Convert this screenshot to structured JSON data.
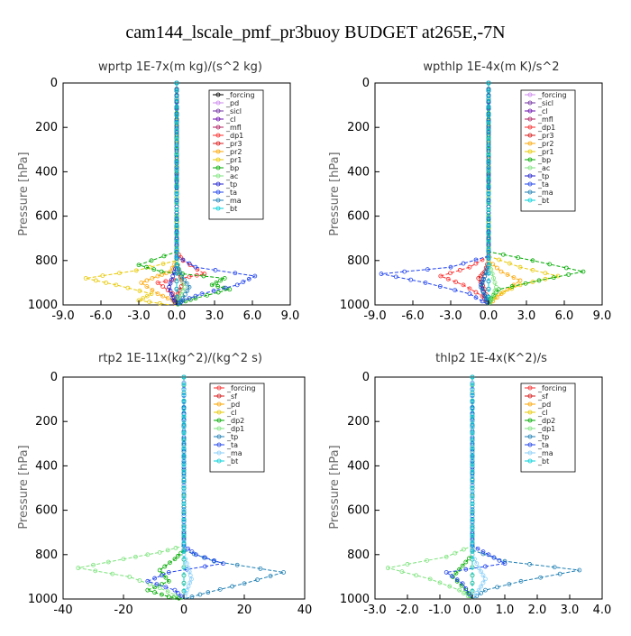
{
  "figure": {
    "title": "cam144_lscale_pmf_pr3buoy  BUDGET at265E,-7N"
  },
  "chart_data": [
    {
      "type": "line",
      "title": "wprtp   1E-7x(m kg)/(s^2 kg)",
      "ylabel": "Pressure [hPa]",
      "xlim": [
        -9,
        9
      ],
      "xticks": [
        -9,
        -6,
        -3,
        0,
        3,
        6,
        9
      ],
      "xtick_labels": [
        "-9.0",
        "-6.0",
        "-3.0",
        "0.0",
        "3.0",
        "6.0",
        "9.0"
      ],
      "ylim": [
        1000,
        0
      ],
      "yticks": [
        0,
        200,
        400,
        600,
        800,
        1000
      ],
      "ytick_labels": [
        "0",
        "200",
        "400",
        "600",
        "800",
        "1000"
      ],
      "legend_position": "top-right",
      "series": [
        {
          "name": "_forcing",
          "color": "#000000",
          "x": [
            0,
            0
          ],
          "y": [
            0,
            1000
          ]
        },
        {
          "name": "_pd",
          "color": "#cc88ee",
          "x": [
            0,
            0
          ],
          "y": [
            0,
            1000
          ]
        },
        {
          "name": "_sicl",
          "color": "#7030a0",
          "x": [
            0,
            0
          ],
          "y": [
            0,
            1000
          ]
        },
        {
          "name": "_cl",
          "color": "#6a0dad",
          "x": [
            0,
            0
          ],
          "y": [
            0,
            1000
          ]
        },
        {
          "name": "_mfl",
          "color": "#b02060",
          "x": [
            0,
            0
          ],
          "y": [
            0,
            1000
          ]
        },
        {
          "name": "_dp1",
          "color": "#ff2a2a",
          "x": [
            0,
            0,
            0.5,
            2.2,
            0.4,
            -1.5,
            -0.3,
            0
          ],
          "y": [
            0,
            760,
            800,
            860,
            880,
            900,
            950,
            1000
          ]
        },
        {
          "name": "_pr3",
          "color": "#d81818",
          "x": [
            0,
            0,
            0.2,
            0.5,
            0.1,
            0
          ],
          "y": [
            0,
            800,
            860,
            900,
            950,
            1000
          ]
        },
        {
          "name": "_pr2",
          "color": "#ffa500",
          "x": [
            0,
            0,
            -0.5,
            -1.5,
            -2.8,
            -1.5,
            -0.3,
            0
          ],
          "y": [
            0,
            800,
            850,
            870,
            900,
            950,
            980,
            1000
          ]
        },
        {
          "name": "_pr1",
          "color": "#e8c800",
          "x": [
            0,
            0,
            -3.2,
            -7.2,
            -4.8,
            -2.0,
            -3.0,
            -0.5
          ],
          "y": [
            0,
            800,
            845,
            880,
            910,
            950,
            980,
            1000
          ]
        },
        {
          "name": "_bp",
          "color": "#00aa00",
          "x": [
            0,
            0,
            -3.0,
            -1.2,
            3.8,
            2.8,
            4.2,
            1.5,
            0.3,
            0
          ],
          "y": [
            0,
            760,
            820,
            850,
            880,
            910,
            930,
            970,
            990,
            1000
          ]
        },
        {
          "name": "_ac",
          "color": "#7be37b",
          "x": [
            0,
            0,
            0.3,
            0.6,
            0.2,
            0
          ],
          "y": [
            0,
            800,
            860,
            920,
            970,
            1000
          ]
        },
        {
          "name": "_tp",
          "color": "#2222cc",
          "x": [
            0,
            0,
            -0.3,
            -0.6,
            -0.3,
            0
          ],
          "y": [
            0,
            820,
            870,
            920,
            970,
            1000
          ]
        },
        {
          "name": "_ta",
          "color": "#2244ee",
          "x": [
            0,
            0,
            1.5,
            6.2,
            4.8,
            2.0,
            0.5,
            0
          ],
          "y": [
            0,
            780,
            830,
            870,
            910,
            950,
            980,
            1000
          ]
        },
        {
          "name": "_ma",
          "color": "#1f7fb4",
          "x": [
            0,
            0,
            0.4,
            1.0,
            0.5,
            0
          ],
          "y": [
            0,
            820,
            870,
            920,
            970,
            1000
          ]
        },
        {
          "name": "_bt",
          "color": "#00d0d8",
          "x": [
            0,
            0
          ],
          "y": [
            0,
            1000
          ]
        }
      ]
    },
    {
      "type": "line",
      "title": "wpthlp   1E-4x(m K)/s^2",
      "ylabel": "Pressure [hPa]",
      "xlim": [
        -9,
        9
      ],
      "xticks": [
        -9,
        -6,
        -3,
        0,
        3,
        6,
        9
      ],
      "xtick_labels": [
        "-9.0",
        "-6.0",
        "-3.0",
        "0.0",
        "3.0",
        "6.0",
        "9.0"
      ],
      "ylim": [
        1000,
        0
      ],
      "yticks": [
        0,
        200,
        400,
        600,
        800,
        1000
      ],
      "ytick_labels": [
        "0",
        "200",
        "400",
        "600",
        "800",
        "1000"
      ],
      "legend_position": "top-right",
      "series": [
        {
          "name": "_forcing",
          "color": "#cc88ee",
          "x": [
            0,
            0
          ],
          "y": [
            0,
            1000
          ]
        },
        {
          "name": "_sicl",
          "color": "#7030a0",
          "x": [
            0,
            0
          ],
          "y": [
            0,
            1000
          ]
        },
        {
          "name": "_cl",
          "color": "#6a0dad",
          "x": [
            0,
            0
          ],
          "y": [
            0,
            1000
          ]
        },
        {
          "name": "_mfl",
          "color": "#b02060",
          "x": [
            0,
            0
          ],
          "y": [
            0,
            1000
          ]
        },
        {
          "name": "_dp1",
          "color": "#ff2a2a",
          "x": [
            0,
            0,
            -1.5,
            -3.8,
            -2.0,
            -0.5,
            0
          ],
          "y": [
            0,
            780,
            830,
            870,
            910,
            960,
            1000
          ]
        },
        {
          "name": "_pr3",
          "color": "#d81818",
          "x": [
            0,
            0,
            -0.3,
            -0.8,
            -0.3,
            0
          ],
          "y": [
            0,
            800,
            850,
            880,
            930,
            1000
          ]
        },
        {
          "name": "_pr2",
          "color": "#ffa500",
          "x": [
            0,
            0,
            1.0,
            2.5,
            1.0,
            0
          ],
          "y": [
            0,
            800,
            850,
            890,
            950,
            1000
          ]
        },
        {
          "name": "_pr1",
          "color": "#e8c800",
          "x": [
            0,
            0,
            2.5,
            5.5,
            2.5,
            0.5,
            0
          ],
          "y": [
            0,
            780,
            830,
            870,
            910,
            960,
            1000
          ]
        },
        {
          "name": "_bp",
          "color": "#00aa00",
          "x": [
            0,
            0,
            3.5,
            7.5,
            4.0,
            0.8,
            0.2,
            0
          ],
          "y": [
            0,
            760,
            800,
            850,
            890,
            930,
            970,
            1000
          ]
        },
        {
          "name": "_ac",
          "color": "#7be37b",
          "x": [
            0,
            0,
            0.3,
            0.6,
            0.3,
            0
          ],
          "y": [
            0,
            800,
            860,
            920,
            970,
            1000
          ]
        },
        {
          "name": "_tp",
          "color": "#2222cc",
          "x": [
            0,
            0,
            -0.3,
            -0.6,
            -0.3,
            0
          ],
          "y": [
            0,
            820,
            870,
            910,
            960,
            1000
          ]
        },
        {
          "name": "_ta",
          "color": "#2244ee",
          "x": [
            0,
            0,
            -3.0,
            -8.5,
            -5.0,
            -1.5,
            0
          ],
          "y": [
            0,
            780,
            830,
            860,
            900,
            950,
            1000
          ]
        },
        {
          "name": "_ma",
          "color": "#1f7fb4",
          "x": [
            0,
            0,
            -0.3,
            -0.6,
            -0.2,
            0
          ],
          "y": [
            0,
            820,
            870,
            920,
            970,
            1000
          ]
        },
        {
          "name": "_bt",
          "color": "#00d0d8",
          "x": [
            0,
            0
          ],
          "y": [
            0,
            1000
          ]
        }
      ]
    },
    {
      "type": "line",
      "title": "rtp2   1E-11x(kg^2)/(kg^2 s)",
      "ylabel": "Pressure [hPa]",
      "xlim": [
        -40,
        40
      ],
      "xticks": [
        -40,
        -20,
        0,
        20,
        40
      ],
      "xtick_labels": [
        "-40",
        "-20",
        "0",
        "20",
        "40"
      ],
      "ylim": [
        1000,
        0
      ],
      "yticks": [
        0,
        200,
        400,
        600,
        800,
        1000
      ],
      "ytick_labels": [
        "0",
        "200",
        "400",
        "600",
        "800",
        "1000"
      ],
      "legend_position": "top-right",
      "series": [
        {
          "name": "_forcing",
          "color": "#ff2a2a",
          "x": [
            0,
            0
          ],
          "y": [
            0,
            1000
          ]
        },
        {
          "name": "_sf",
          "color": "#d81818",
          "x": [
            0,
            0
          ],
          "y": [
            0,
            1000
          ]
        },
        {
          "name": "_pd",
          "color": "#ffa500",
          "x": [
            0,
            0
          ],
          "y": [
            0,
            1000
          ]
        },
        {
          "name": "_cl",
          "color": "#e8c800",
          "x": [
            0,
            0
          ],
          "y": [
            0,
            1000
          ]
        },
        {
          "name": "_dp2",
          "color": "#00aa00",
          "x": [
            0,
            0,
            -3.0,
            -8.0,
            -5.0,
            -12.0,
            -5.0,
            0
          ],
          "y": [
            0,
            780,
            820,
            870,
            920,
            960,
            990,
            1000
          ]
        },
        {
          "name": "_dp1",
          "color": "#7be37b",
          "x": [
            0,
            0,
            -8.0,
            -20.0,
            -35.0,
            -18.0,
            -8.0,
            0
          ],
          "y": [
            0,
            760,
            790,
            820,
            860,
            900,
            950,
            1000
          ]
        },
        {
          "name": "_tp",
          "color": "#1f7fb4",
          "x": [
            0,
            0,
            10.0,
            33.0,
            20.0,
            8.0,
            0
          ],
          "y": [
            0,
            780,
            830,
            880,
            930,
            970,
            1000
          ]
        },
        {
          "name": "_ta",
          "color": "#2244ee",
          "x": [
            0,
            0,
            4.0,
            13.0,
            -5.0,
            -12.0,
            -3.0,
            0
          ],
          "y": [
            0,
            760,
            800,
            840,
            880,
            920,
            960,
            1000
          ]
        },
        {
          "name": "_ma",
          "color": "#87cefa",
          "x": [
            0,
            0,
            1.5,
            2.5,
            1.0,
            0
          ],
          "y": [
            0,
            800,
            860,
            910,
            960,
            1000
          ]
        },
        {
          "name": "_bt",
          "color": "#00d0d8",
          "x": [
            0,
            0
          ],
          "y": [
            0,
            1000
          ]
        }
      ]
    },
    {
      "type": "line",
      "title": "thlp2   1E-4x(K^2)/s",
      "ylabel": "Pressure [hPa]",
      "xlim": [
        -3,
        4
      ],
      "xticks": [
        -3,
        -2,
        -1,
        0,
        1,
        2,
        3,
        4
      ],
      "xtick_labels": [
        "-3.0",
        "-2.0",
        "-1.0",
        "0.0",
        "1.0",
        "2.0",
        "3.0",
        "4.0"
      ],
      "ylim": [
        1000,
        0
      ],
      "yticks": [
        0,
        200,
        400,
        600,
        800,
        1000
      ],
      "ytick_labels": [
        "0",
        "200",
        "400",
        "600",
        "800",
        "1000"
      ],
      "legend_position": "top-right",
      "series": [
        {
          "name": "_forcing",
          "color": "#ff2a2a",
          "x": [
            0,
            0
          ],
          "y": [
            0,
            1000
          ]
        },
        {
          "name": "_sf",
          "color": "#d81818",
          "x": [
            0,
            0
          ],
          "y": [
            0,
            1000
          ]
        },
        {
          "name": "_pd",
          "color": "#ffa500",
          "x": [
            0,
            0
          ],
          "y": [
            0,
            1000
          ]
        },
        {
          "name": "_cl",
          "color": "#e8c800",
          "x": [
            0,
            0
          ],
          "y": [
            0,
            1000
          ]
        },
        {
          "name": "_dp2",
          "color": "#00aa00",
          "x": [
            0,
            0,
            -0.3,
            -0.6,
            -0.2,
            0
          ],
          "y": [
            0,
            800,
            850,
            900,
            960,
            1000
          ]
        },
        {
          "name": "_dp1",
          "color": "#7be37b",
          "x": [
            0,
            0,
            -0.8,
            -2.6,
            -1.3,
            -0.4,
            0
          ],
          "y": [
            0,
            760,
            810,
            860,
            910,
            960,
            1000
          ]
        },
        {
          "name": "_tp",
          "color": "#1f7fb4",
          "x": [
            0,
            0,
            1.0,
            3.3,
            1.5,
            0.4,
            0
          ],
          "y": [
            0,
            780,
            830,
            870,
            920,
            960,
            1000
          ]
        },
        {
          "name": "_ta",
          "color": "#2244ee",
          "x": [
            0,
            0,
            0.5,
            1.0,
            -0.8,
            -0.3,
            0
          ],
          "y": [
            0,
            760,
            800,
            840,
            880,
            930,
            1000
          ]
        },
        {
          "name": "_ma",
          "color": "#87cefa",
          "x": [
            0,
            0,
            0.2,
            0.4,
            0.2,
            0
          ],
          "y": [
            0,
            800,
            860,
            910,
            960,
            1000
          ]
        },
        {
          "name": "_bt",
          "color": "#00d0d8",
          "x": [
            0,
            0
          ],
          "y": [
            0,
            1000
          ]
        }
      ]
    }
  ]
}
